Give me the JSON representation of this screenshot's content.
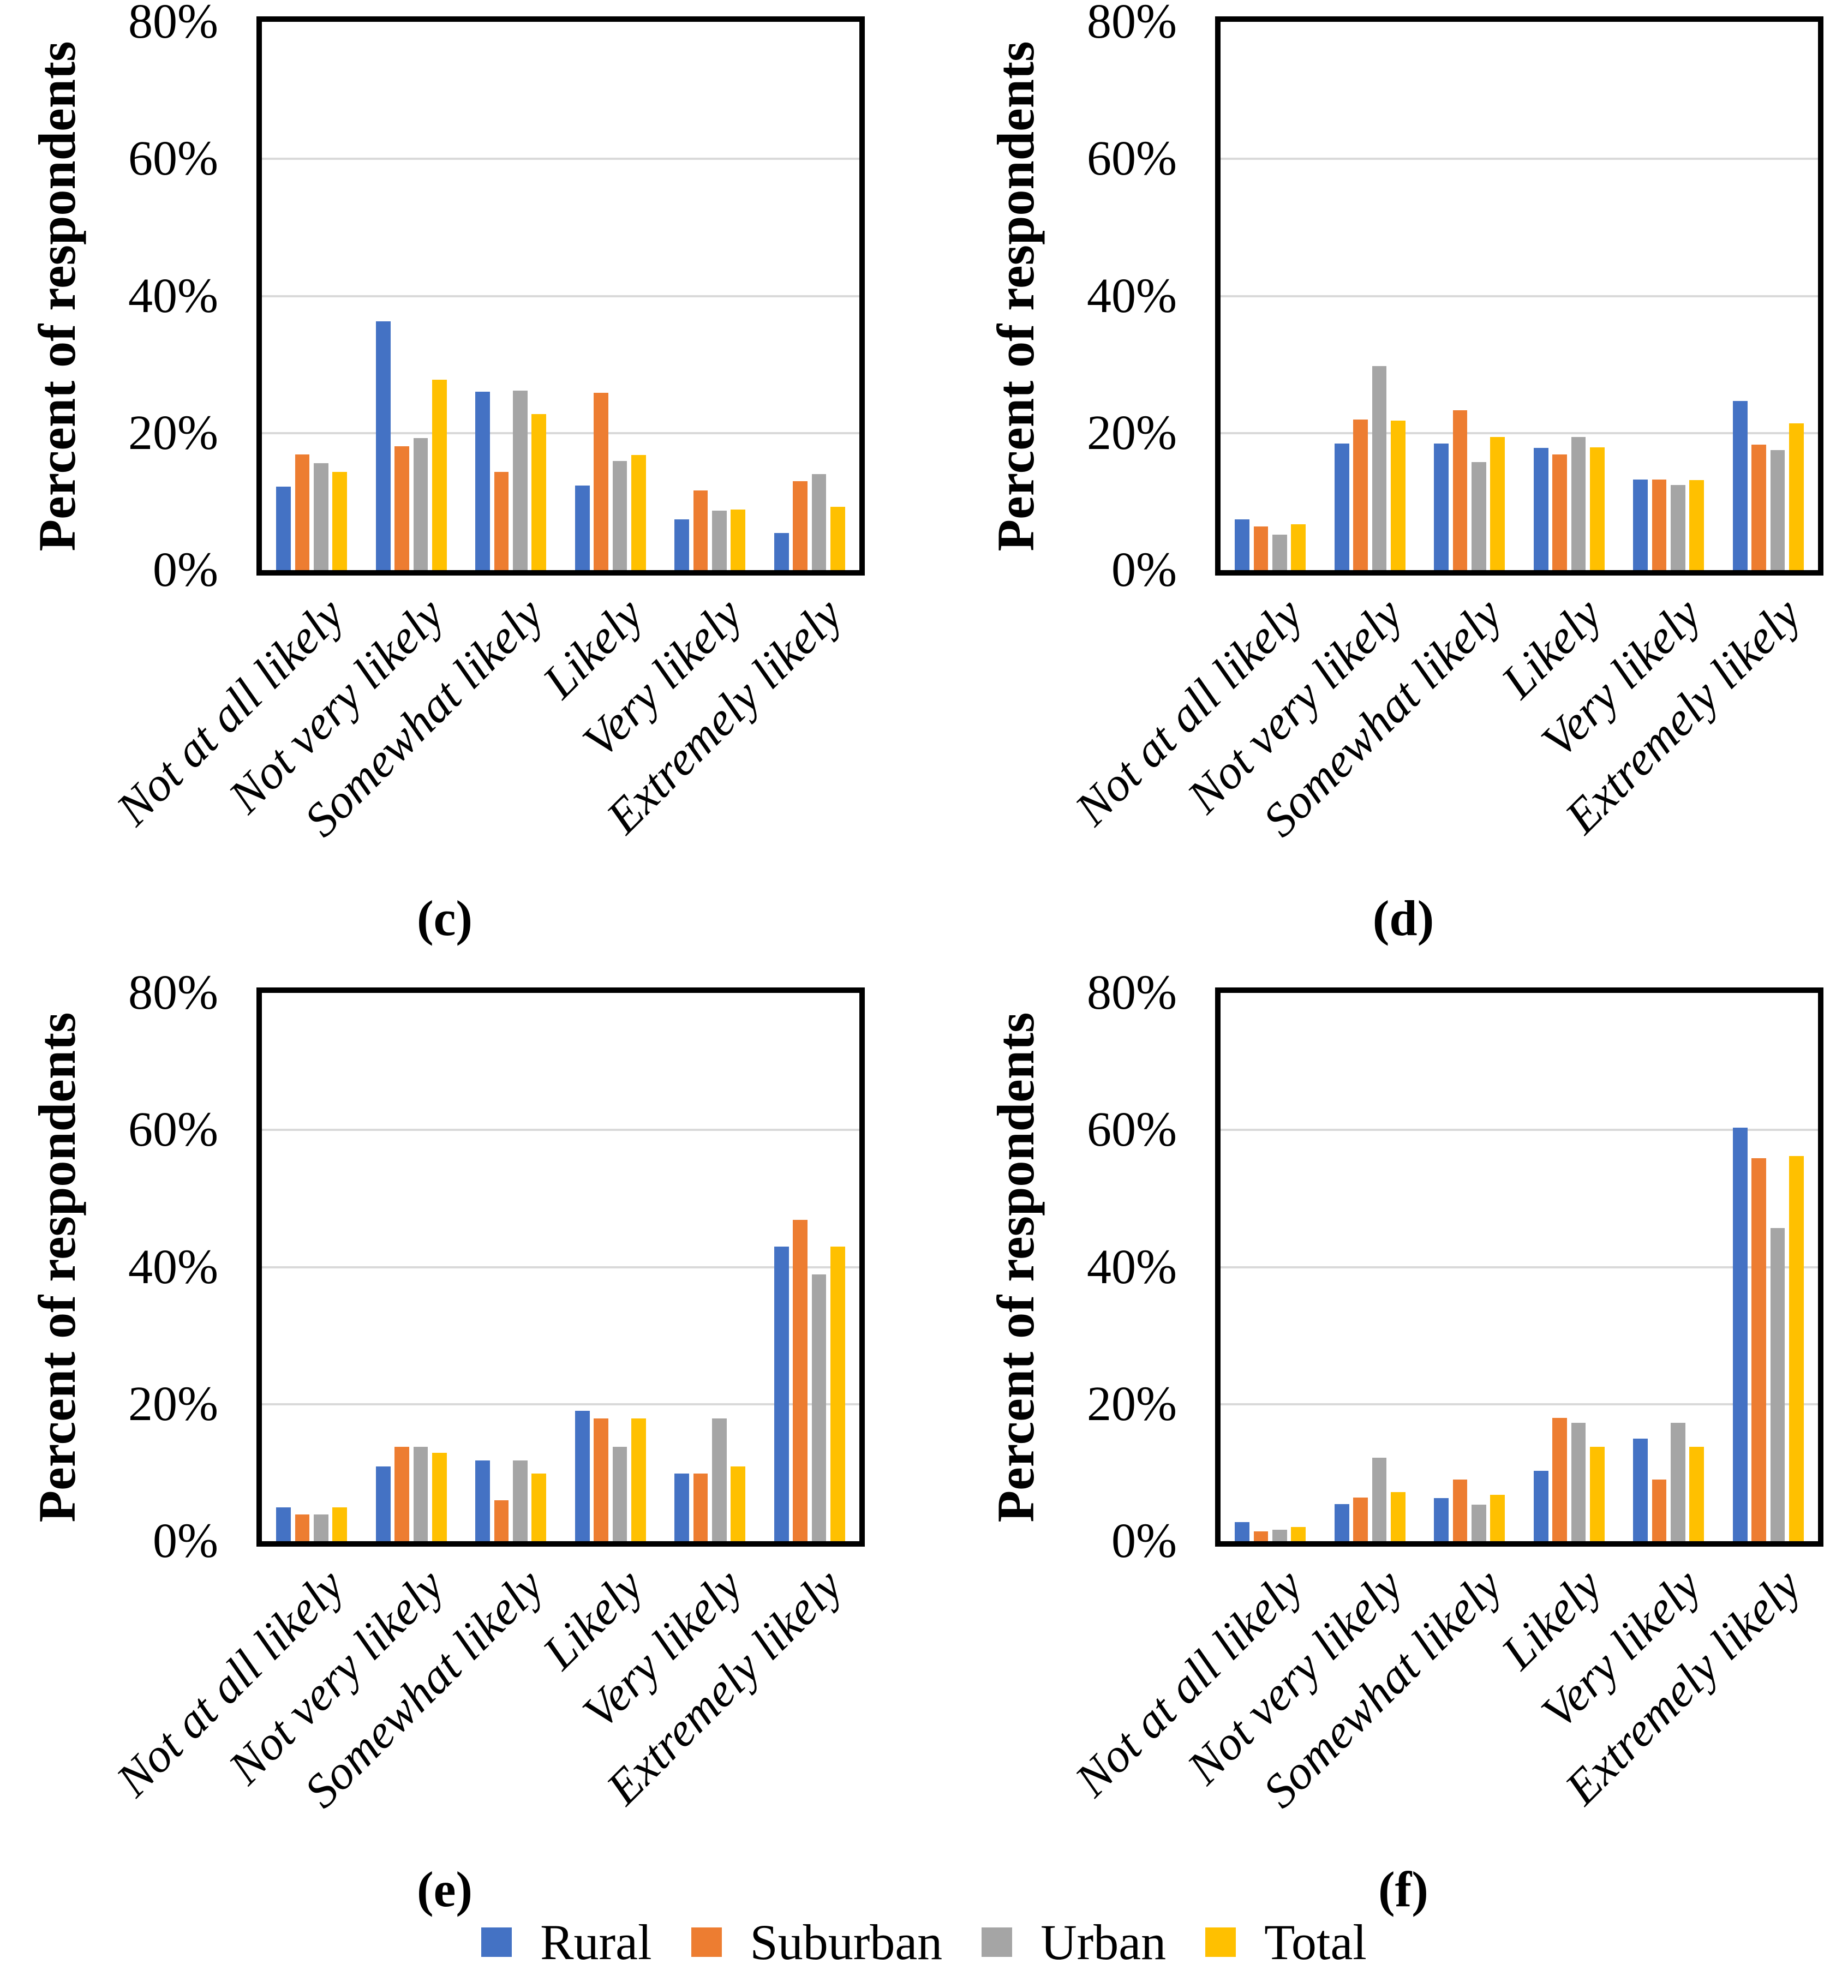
{
  "figure": {
    "y_axis_title": "Percent of respondents",
    "y_ticks": [
      "0%",
      "20%",
      "40%",
      "60%",
      "80%"
    ],
    "y_tick_values": [
      0,
      20,
      40,
      60,
      80
    ],
    "y_max": 80,
    "categories": [
      "Not at all likely",
      "Not very likely",
      "Somewhat likely",
      "Likely",
      "Very likely",
      "Extremely likely"
    ],
    "series_names": [
      "Rural",
      "Suburban",
      "Urban",
      "Total"
    ],
    "colors": {
      "rural": "#4472C4",
      "suburban": "#ED7D31",
      "urban": "#A5A5A5",
      "total": "#FFC000",
      "gridline": "#D9D9D9",
      "axis": "#000000"
    },
    "legend": [
      {
        "label": "Rural",
        "color": "#4472C4"
      },
      {
        "label": "Suburban",
        "color": "#ED7D31"
      },
      {
        "label": "Urban",
        "color": "#A5A5A5"
      },
      {
        "label": "Total",
        "color": "#FFC000"
      }
    ]
  },
  "chart_data": [
    {
      "type": "bar",
      "panel": "(c)",
      "ylabel": "Percent of respondents",
      "ylim": [
        0,
        80
      ],
      "grid": true,
      "legend_position": "bottom-shared",
      "categories": [
        "Not at all likely",
        "Not very likely",
        "Somewhat likely",
        "Likely",
        "Very likely",
        "Extremely likely"
      ],
      "series": [
        {
          "name": "Rural",
          "color": "#4472C4",
          "values": [
            12.2,
            36.3,
            26.0,
            12.3,
            7.4,
            5.4
          ]
        },
        {
          "name": "Suburban",
          "color": "#ED7D31",
          "values": [
            16.9,
            18.1,
            14.3,
            25.9,
            11.6,
            13.0
          ]
        },
        {
          "name": "Urban",
          "color": "#A5A5A5",
          "values": [
            15.6,
            19.3,
            26.2,
            15.9,
            8.7,
            14.0
          ]
        },
        {
          "name": "Total",
          "color": "#FFC000",
          "values": [
            14.3,
            27.8,
            22.8,
            16.8,
            8.8,
            9.2
          ]
        }
      ]
    },
    {
      "type": "bar",
      "panel": "(d)",
      "ylabel": "Percent of respondents",
      "ylim": [
        0,
        80
      ],
      "grid": true,
      "legend_position": "bottom-shared",
      "categories": [
        "Not at all likely",
        "Not very likely",
        "Somewhat likely",
        "Likely",
        "Very likely",
        "Extremely likely"
      ],
      "series": [
        {
          "name": "Rural",
          "color": "#4472C4",
          "values": [
            7.4,
            18.5,
            18.5,
            17.8,
            13.2,
            24.7
          ]
        },
        {
          "name": "Suburban",
          "color": "#ED7D31",
          "values": [
            6.4,
            22.0,
            23.3,
            16.9,
            13.2,
            18.3
          ]
        },
        {
          "name": "Urban",
          "color": "#A5A5A5",
          "values": [
            5.2,
            29.8,
            15.8,
            19.4,
            12.4,
            17.5
          ]
        },
        {
          "name": "Total",
          "color": "#FFC000",
          "values": [
            6.7,
            21.8,
            19.4,
            17.9,
            13.1,
            21.4
          ]
        }
      ]
    },
    {
      "type": "bar",
      "panel": "(e)",
      "ylabel": "Percent of respondents",
      "ylim": [
        0,
        80
      ],
      "grid": true,
      "legend_position": "bottom-shared",
      "categories": [
        "Not at all likely",
        "Not very likely",
        "Somewhat likely",
        "Likely",
        "Very likely",
        "Extremely likely"
      ],
      "series": [
        {
          "name": "Rural",
          "color": "#4472C4",
          "values": [
            4.9,
            10.9,
            11.8,
            19.0,
            9.9,
            43.0
          ]
        },
        {
          "name": "Suburban",
          "color": "#ED7D31",
          "values": [
            3.9,
            13.8,
            6.0,
            17.9,
            9.9,
            46.9
          ]
        },
        {
          "name": "Urban",
          "color": "#A5A5A5",
          "values": [
            3.9,
            13.8,
            11.8,
            13.8,
            17.9,
            38.9
          ]
        },
        {
          "name": "Total",
          "color": "#FFC000",
          "values": [
            4.9,
            12.9,
            9.9,
            17.9,
            10.9,
            43.0
          ]
        }
      ]
    },
    {
      "type": "bar",
      "panel": "(f)",
      "ylabel": "Percent of respondents",
      "ylim": [
        0,
        80
      ],
      "grid": true,
      "legend_position": "bottom-shared",
      "categories": [
        "Not at all likely",
        "Not very likely",
        "Somewhat likely",
        "Likely",
        "Very likely",
        "Extremely likely"
      ],
      "series": [
        {
          "name": "Rural",
          "color": "#4472C4",
          "values": [
            2.8,
            5.4,
            6.3,
            10.3,
            15.0,
            60.3
          ]
        },
        {
          "name": "Suburban",
          "color": "#ED7D31",
          "values": [
            1.4,
            6.4,
            9.0,
            18.0,
            9.0,
            55.9
          ]
        },
        {
          "name": "Urban",
          "color": "#A5A5A5",
          "values": [
            1.7,
            12.2,
            5.3,
            17.3,
            17.3,
            45.7
          ]
        },
        {
          "name": "Total",
          "color": "#FFC000",
          "values": [
            2.1,
            7.2,
            6.8,
            13.8,
            13.8,
            56.2
          ]
        }
      ]
    }
  ]
}
